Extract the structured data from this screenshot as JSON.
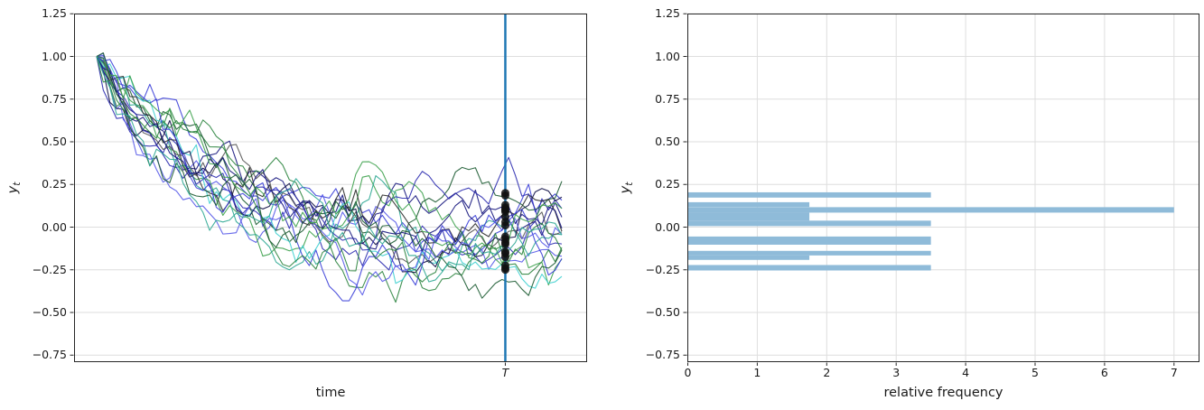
{
  "figure": {
    "background": "#ffffff"
  },
  "colors": {
    "grid": "#dedede",
    "spine": "#262626",
    "text": "#1a1a1a",
    "hist_bar": "#8fbbd9",
    "t_line": "#1f77b4",
    "marker": "#111111"
  },
  "left_plot": {
    "ylabel_base": "y",
    "ylabel_sub": "t",
    "xlabel": "time",
    "xtick_label": "T",
    "ytick_values": [
      1.25,
      1.0,
      0.75,
      0.5,
      0.25,
      0.0,
      -0.25,
      -0.5,
      -0.75
    ],
    "ytick_labels": [
      "1.25",
      "1.00",
      "0.75",
      "0.50",
      "0.25",
      "0.00",
      "−0.25",
      "−0.50",
      "−0.75"
    ]
  },
  "right_plot": {
    "ylabel_base": "y",
    "ylabel_sub": "t",
    "xlabel": "relative frequency",
    "xtick_values": [
      0,
      1,
      2,
      3,
      4,
      5,
      6,
      7
    ],
    "xtick_labels": [
      "0",
      "1",
      "2",
      "3",
      "4",
      "5",
      "6",
      "7"
    ],
    "ytick_values": [
      1.25,
      1.0,
      0.75,
      0.5,
      0.25,
      0.0,
      -0.25,
      -0.5,
      -0.75
    ],
    "ytick_labels": [
      "1.25",
      "1.00",
      "0.75",
      "0.50",
      "0.25",
      "0.00",
      "−0.25",
      "−0.50",
      "−0.75"
    ]
  },
  "chart_data": [
    {
      "type": "line",
      "title": "",
      "xlabel": "time",
      "ylabel": "y_t",
      "ylim": [
        -0.79,
        1.25
      ],
      "yticks": [
        1.25,
        1.0,
        0.75,
        0.5,
        0.25,
        0.0,
        -0.25,
        -0.5,
        -0.75
      ],
      "x_tick_labels": [
        "T"
      ],
      "grid": "horizontal",
      "model": "simulated AR(1) trajectories decaying from y0 toward 0 with gaussian noise",
      "n_series": 20,
      "n_points": 71,
      "y0": 1.0,
      "phi": 0.93,
      "sigma": 0.06,
      "seed": 20240521,
      "T_index": 61.5,
      "vline_at_T": true,
      "vline_color": "#1f77b4",
      "marker_color": "#111111",
      "T_marker_values": [
        0.2,
        0.185,
        0.13,
        0.115,
        0.105,
        0.1,
        0.09,
        0.06,
        0.03,
        0.01,
        -0.055,
        -0.07,
        -0.09,
        -0.1,
        -0.145,
        -0.155,
        -0.175,
        -0.225,
        -0.24,
        -0.25
      ],
      "series_palette": [
        "#3b3fd8",
        "#2d2db0",
        "#5558e8",
        "#16167e",
        "#3da14d",
        "#2e8540",
        "#1d5c33",
        "#2fa893",
        "#3fd0d0",
        "#2b2b2b",
        "#555555",
        "#0f0f46"
      ]
    },
    {
      "type": "bar",
      "orientation": "horizontal",
      "title": "",
      "xlabel": "relative frequency",
      "ylabel": "y_t",
      "xlim": [
        0,
        7.37
      ],
      "ylim": [
        -0.79,
        1.25
      ],
      "xticks": [
        0,
        1,
        2,
        3,
        4,
        5,
        6,
        7
      ],
      "grid": "both",
      "bar_color": "#8fbbd9",
      "bins": [
        {
          "y_from": 0.173,
          "y_to": 0.204,
          "value": 3.5
        },
        {
          "y_from": 0.118,
          "y_to": 0.146,
          "value": 1.75
        },
        {
          "y_from": 0.085,
          "y_to": 0.117,
          "value": 7.0
        },
        {
          "y_from": 0.038,
          "y_to": 0.085,
          "value": 1.75
        },
        {
          "y_from": 0.006,
          "y_to": 0.038,
          "value": 3.5
        },
        {
          "y_from": -0.103,
          "y_to": -0.055,
          "value": 3.5
        },
        {
          "y_from": -0.166,
          "y_to": -0.139,
          "value": 3.5
        },
        {
          "y_from": -0.192,
          "y_to": -0.166,
          "value": 1.75
        },
        {
          "y_from": -0.254,
          "y_to": -0.222,
          "value": 3.5
        }
      ]
    }
  ]
}
